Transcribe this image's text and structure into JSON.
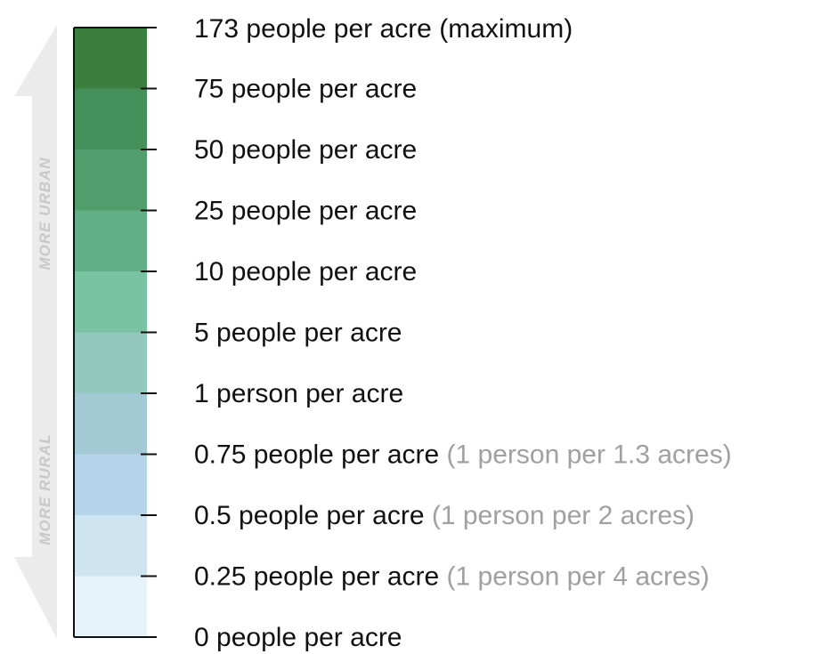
{
  "arrow": {
    "up_label": "MORE URBAN",
    "down_label": "MORE RURAL"
  },
  "legend": {
    "swatches": [
      "#3a7f3e",
      "#45905a",
      "#519e6c",
      "#62ae86",
      "#7ac2a4",
      "#93c8bd",
      "#a3c9d4",
      "#b6d4e9",
      "#cfe4f1",
      "#e6f3fa"
    ],
    "labels": [
      {
        "text": "173 people per acre (maximum)"
      },
      {
        "text": "75 people per acre"
      },
      {
        "text": "50 people per acre"
      },
      {
        "text": "25 people per acre"
      },
      {
        "text": "10 people per acre"
      },
      {
        "text": "5 people per acre"
      },
      {
        "text": "1 person per acre"
      },
      {
        "text": "0.75 people per acre",
        "note": "(1 person per 1.3 acres)"
      },
      {
        "text": "0.5 people per acre",
        "note": "(1 person per 2 acres)"
      },
      {
        "text": "0.25 people per acre",
        "note": "(1 person per 4 acres)"
      },
      {
        "text": "0 people per acre"
      }
    ]
  }
}
